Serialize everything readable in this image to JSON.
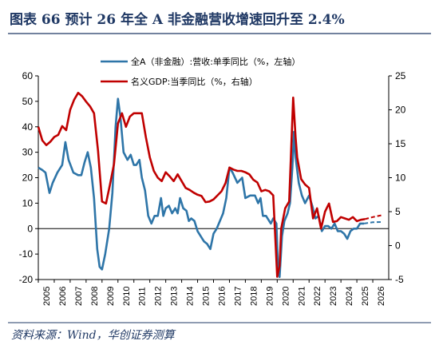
{
  "header": {
    "title": "图表 66  预计 26 年全 A 非金融营收增速回升至 2.4%",
    "source": "资料来源：Wind，华创证券测算"
  },
  "colors": {
    "title": "#1f3864",
    "series_a": "#2e75a8",
    "series_b": "#c00000",
    "axis": "#000000"
  },
  "chart_data": {
    "type": "line",
    "x_categories": [
      "2005",
      "2006",
      "2007",
      "2008",
      "2009",
      "2010",
      "2011",
      "2012",
      "2013",
      "2014",
      "2015",
      "2016",
      "2017",
      "2018",
      "2019",
      "2020",
      "2021",
      "2022",
      "2023",
      "2024",
      "2025",
      "2026"
    ],
    "y_left": {
      "min": -20,
      "max": 60,
      "ticks": [
        -20,
        -10,
        0,
        10,
        20,
        30,
        40,
        50,
        60
      ]
    },
    "y_right": {
      "min": -5,
      "max": 25,
      "ticks": [
        -5,
        0,
        5,
        10,
        15,
        20,
        25
      ]
    },
    "legend_position": "top",
    "series": [
      {
        "name": "全A（非金融）:营收:单季同比（%，左轴）",
        "axis": "left",
        "points": [
          [
            2005.0,
            24
          ],
          [
            2005.25,
            23
          ],
          [
            2005.45,
            22
          ],
          [
            2005.7,
            14
          ],
          [
            2005.9,
            18
          ],
          [
            2006.2,
            22
          ],
          [
            2006.5,
            25
          ],
          [
            2006.7,
            34
          ],
          [
            2006.9,
            27
          ],
          [
            2007.2,
            22
          ],
          [
            2007.5,
            21
          ],
          [
            2007.7,
            21
          ],
          [
            2007.9,
            26
          ],
          [
            2008.1,
            30
          ],
          [
            2008.3,
            24
          ],
          [
            2008.5,
            12
          ],
          [
            2008.7,
            -8
          ],
          [
            2008.85,
            -15
          ],
          [
            2009.0,
            -16
          ],
          [
            2009.2,
            -10
          ],
          [
            2009.45,
            0
          ],
          [
            2009.65,
            14
          ],
          [
            2009.85,
            40
          ],
          [
            2010.0,
            51
          ],
          [
            2010.15,
            44
          ],
          [
            2010.35,
            30
          ],
          [
            2010.6,
            27
          ],
          [
            2010.8,
            29
          ],
          [
            2011.0,
            25
          ],
          [
            2011.15,
            25
          ],
          [
            2011.35,
            27
          ],
          [
            2011.5,
            20
          ],
          [
            2011.7,
            15
          ],
          [
            2011.9,
            5
          ],
          [
            2012.1,
            2
          ],
          [
            2012.3,
            5
          ],
          [
            2012.5,
            5
          ],
          [
            2012.7,
            12
          ],
          [
            2012.85,
            5
          ],
          [
            2013.0,
            8
          ],
          [
            2013.2,
            9
          ],
          [
            2013.4,
            6
          ],
          [
            2013.6,
            8
          ],
          [
            2013.75,
            6
          ],
          [
            2013.9,
            12
          ],
          [
            2014.1,
            8
          ],
          [
            2014.3,
            7
          ],
          [
            2014.45,
            3
          ],
          [
            2014.6,
            4
          ],
          [
            2014.8,
            3
          ],
          [
            2015.0,
            -1
          ],
          [
            2015.2,
            -3
          ],
          [
            2015.4,
            -5
          ],
          [
            2015.6,
            -6
          ],
          [
            2015.8,
            -8
          ],
          [
            2016.0,
            -2
          ],
          [
            2016.2,
            0
          ],
          [
            2016.4,
            3
          ],
          [
            2016.6,
            6
          ],
          [
            2016.8,
            12
          ],
          [
            2017.0,
            24
          ],
          [
            2017.2,
            22
          ],
          [
            2017.5,
            18
          ],
          [
            2017.8,
            20
          ],
          [
            2018.0,
            12
          ],
          [
            2018.3,
            13
          ],
          [
            2018.6,
            13
          ],
          [
            2018.8,
            10
          ],
          [
            2018.95,
            12
          ],
          [
            2019.1,
            5
          ],
          [
            2019.3,
            5
          ],
          [
            2019.6,
            2
          ],
          [
            2019.75,
            4
          ],
          [
            2019.95,
            2
          ],
          [
            2020.05,
            -15
          ],
          [
            2020.15,
            -19
          ],
          [
            2020.3,
            -3
          ],
          [
            2020.45,
            3
          ],
          [
            2020.65,
            6
          ],
          [
            2020.8,
            10
          ],
          [
            2020.95,
            24
          ],
          [
            2021.05,
            38
          ],
          [
            2021.15,
            28
          ],
          [
            2021.35,
            18
          ],
          [
            2021.55,
            13
          ],
          [
            2021.75,
            10
          ],
          [
            2022.0,
            13
          ],
          [
            2022.2,
            9
          ],
          [
            2022.4,
            4
          ],
          [
            2022.6,
            5
          ],
          [
            2022.8,
            -1
          ],
          [
            2023.0,
            1
          ],
          [
            2023.2,
            1
          ],
          [
            2023.4,
            0
          ],
          [
            2023.6,
            2
          ],
          [
            2023.8,
            -1
          ],
          [
            2024.0,
            -1
          ],
          [
            2024.2,
            -2
          ],
          [
            2024.4,
            -4
          ],
          [
            2024.6,
            -1
          ],
          [
            2024.8,
            0
          ],
          [
            2025.0,
            0
          ],
          [
            2025.2,
            2
          ],
          [
            2025.45,
            2
          ]
        ],
        "forecast": [
          [
            2025.45,
            2
          ],
          [
            2026.0,
            2.5
          ],
          [
            2026.5,
            2.6
          ]
        ]
      },
      {
        "name": "名义GDP:当季同比（%，右轴）",
        "axis": "right",
        "points": [
          [
            2005.0,
            17.5
          ],
          [
            2005.25,
            15.5
          ],
          [
            2005.5,
            14.8
          ],
          [
            2005.75,
            15.3
          ],
          [
            2006.0,
            16
          ],
          [
            2006.25,
            16.3
          ],
          [
            2006.5,
            17.6
          ],
          [
            2006.75,
            17
          ],
          [
            2007.0,
            20
          ],
          [
            2007.25,
            21.5
          ],
          [
            2007.5,
            22.5
          ],
          [
            2007.75,
            22
          ],
          [
            2008.0,
            21.2
          ],
          [
            2008.25,
            20.5
          ],
          [
            2008.5,
            19.5
          ],
          [
            2008.75,
            14
          ],
          [
            2009.0,
            6.5
          ],
          [
            2009.25,
            6.2
          ],
          [
            2009.5,
            9
          ],
          [
            2009.75,
            12
          ],
          [
            2010.0,
            18
          ],
          [
            2010.25,
            19.5
          ],
          [
            2010.5,
            17.5
          ],
          [
            2010.75,
            19
          ],
          [
            2011.0,
            19.5
          ],
          [
            2011.25,
            19.5
          ],
          [
            2011.5,
            19.5
          ],
          [
            2011.75,
            16
          ],
          [
            2012.0,
            13
          ],
          [
            2012.25,
            11
          ],
          [
            2012.5,
            10
          ],
          [
            2012.75,
            9.5
          ],
          [
            2013.0,
            10.8
          ],
          [
            2013.25,
            10.2
          ],
          [
            2013.5,
            9.5
          ],
          [
            2013.75,
            10.5
          ],
          [
            2014.0,
            9.5
          ],
          [
            2014.25,
            8.5
          ],
          [
            2014.5,
            8.2
          ],
          [
            2014.75,
            7.8
          ],
          [
            2015.0,
            7.5
          ],
          [
            2015.25,
            7.3
          ],
          [
            2015.5,
            6.4
          ],
          [
            2015.75,
            6.5
          ],
          [
            2016.0,
            6.8
          ],
          [
            2016.25,
            7.4
          ],
          [
            2016.5,
            8
          ],
          [
            2016.75,
            9.2
          ],
          [
            2017.0,
            11.5
          ],
          [
            2017.25,
            11.2
          ],
          [
            2017.5,
            11
          ],
          [
            2017.75,
            11
          ],
          [
            2018.0,
            10.8
          ],
          [
            2018.25,
            10.5
          ],
          [
            2018.5,
            9.7
          ],
          [
            2018.75,
            9.3
          ],
          [
            2019.0,
            8
          ],
          [
            2019.25,
            8.2
          ],
          [
            2019.5,
            8
          ],
          [
            2019.75,
            7.4
          ],
          [
            2020.0,
            -4.6
          ],
          [
            2020.15,
            -3
          ],
          [
            2020.25,
            2.5
          ],
          [
            2020.5,
            5.5
          ],
          [
            2020.75,
            6.5
          ],
          [
            2021.0,
            21.8
          ],
          [
            2021.15,
            16
          ],
          [
            2021.25,
            13
          ],
          [
            2021.5,
            9.8
          ],
          [
            2021.75,
            9
          ],
          [
            2022.0,
            8.5
          ],
          [
            2022.25,
            4
          ],
          [
            2022.5,
            5.5
          ],
          [
            2022.75,
            2.5
          ],
          [
            2023.0,
            5
          ],
          [
            2023.25,
            6.2
          ],
          [
            2023.5,
            3.5
          ],
          [
            2023.75,
            3.6
          ],
          [
            2024.0,
            4.2
          ],
          [
            2024.25,
            4
          ],
          [
            2024.5,
            3.8
          ],
          [
            2024.75,
            4.2
          ],
          [
            2025.0,
            3.6
          ],
          [
            2025.25,
            3.8
          ],
          [
            2025.5,
            3.9
          ]
        ],
        "forecast": [
          [
            2025.5,
            3.9
          ],
          [
            2026.0,
            4.2
          ],
          [
            2026.6,
            4.5
          ]
        ]
      }
    ]
  }
}
